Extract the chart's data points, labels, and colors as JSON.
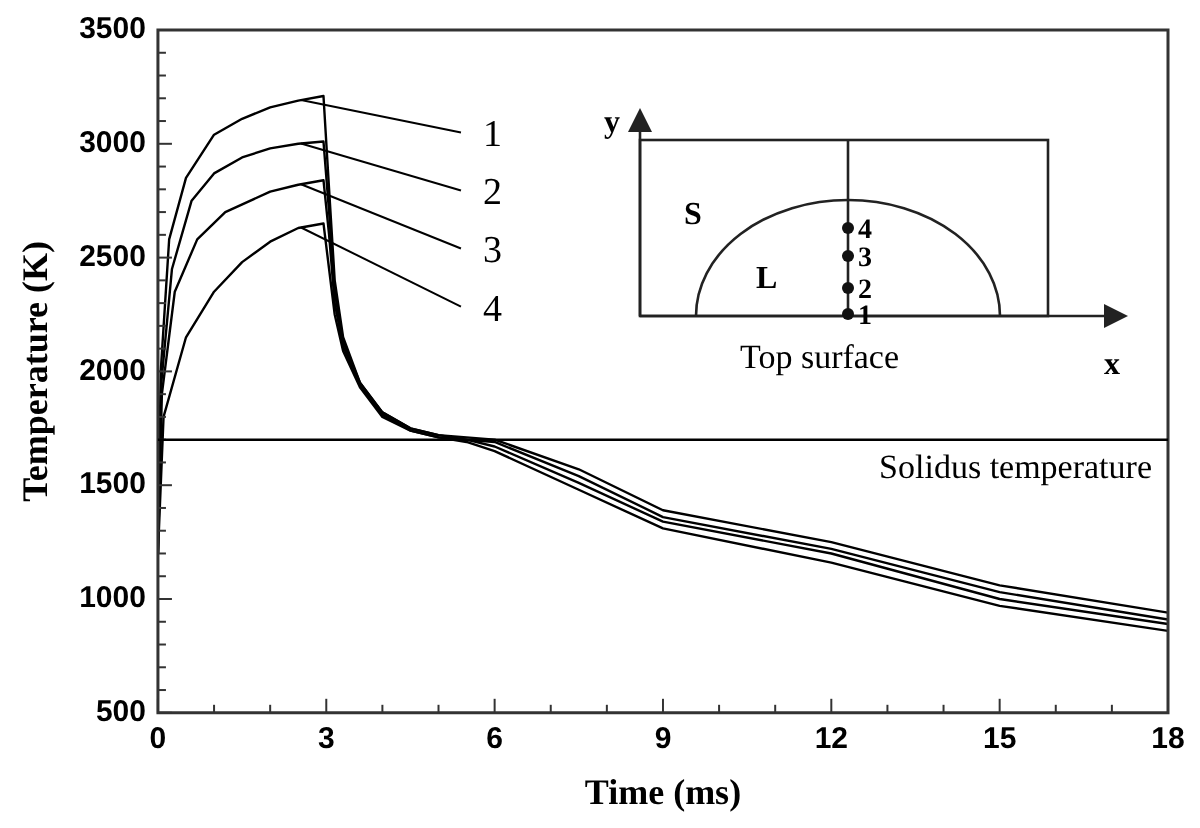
{
  "chart_data": {
    "type": "line",
    "xlabel": "Time (ms)",
    "ylabel": "Temperature (K)",
    "xlim": [
      0,
      18
    ],
    "ylim": [
      500,
      3500
    ],
    "xticks": [
      0,
      {
        "value": 1,
        "label": null
      },
      {
        "value": 2,
        "label": null
      },
      3,
      {
        "value": 4,
        "label": null
      },
      {
        "value": 5,
        "label": null
      },
      6,
      {
        "value": 7,
        "label": null
      },
      {
        "value": 8,
        "label": null
      },
      9,
      {
        "value": 10,
        "label": null
      },
      {
        "value": 11,
        "label": null
      },
      12,
      {
        "value": 13,
        "label": null
      },
      {
        "value": 14,
        "label": null
      },
      15,
      {
        "value": 16,
        "label": null
      },
      {
        "value": 17,
        "label": null
      },
      18
    ],
    "yticks": [
      500,
      {
        "value": 600,
        "label": null
      },
      {
        "value": 700,
        "label": null
      },
      {
        "value": 800,
        "label": null
      },
      {
        "value": 900,
        "label": null
      },
      1000,
      {
        "value": 1100,
        "label": null
      },
      {
        "value": 1200,
        "label": null
      },
      {
        "value": 1300,
        "label": null
      },
      {
        "value": 1400,
        "label": null
      },
      1500,
      {
        "value": 1600,
        "label": null
      },
      {
        "value": 1700,
        "label": null
      },
      {
        "value": 1800,
        "label": null
      },
      {
        "value": 1900,
        "label": null
      },
      2000,
      {
        "value": 2100,
        "label": null
      },
      {
        "value": 2200,
        "label": null
      },
      {
        "value": 2300,
        "label": null
      },
      {
        "value": 2400,
        "label": null
      },
      2500,
      {
        "value": 2600,
        "label": null
      },
      {
        "value": 2700,
        "label": null
      },
      {
        "value": 2800,
        "label": null
      },
      {
        "value": 2900,
        "label": null
      },
      3000,
      {
        "value": 3100,
        "label": null
      },
      {
        "value": 3200,
        "label": null
      },
      {
        "value": 3300,
        "label": null
      },
      {
        "value": 3400,
        "label": null
      },
      3500
    ],
    "grid": false,
    "legend": "top left",
    "marker": "none",
    "line_style": "solid",
    "series": [
      {
        "name": "1",
        "color": "#000000",
        "x": [
          0,
          0.05,
          0.2,
          0.5,
          1,
          1.5,
          2,
          2.5,
          2.95,
          3.05,
          3.15,
          3.3,
          3.6,
          4,
          4.5,
          5,
          5.5,
          6,
          7.5,
          9,
          12,
          15,
          18
        ],
        "values": [
          1200,
          2000,
          2580,
          2850,
          3040,
          3110,
          3160,
          3190,
          3210,
          2800,
          2400,
          2150,
          1950,
          1820,
          1750,
          1720,
          1710,
          1700,
          1570,
          1390,
          1250,
          1060,
          940
        ]
      },
      {
        "name": "2",
        "color": "#000000",
        "x": [
          0,
          0.06,
          0.25,
          0.6,
          1,
          1.5,
          2,
          2.5,
          2.95,
          3.05,
          3.15,
          3.3,
          3.6,
          4,
          4.5,
          5,
          5.5,
          6,
          7.5,
          9,
          12,
          15,
          18
        ],
        "values": [
          1200,
          1950,
          2450,
          2750,
          2870,
          2940,
          2980,
          3000,
          3010,
          2700,
          2350,
          2130,
          1950,
          1820,
          1750,
          1720,
          1700,
          1690,
          1540,
          1360,
          1220,
          1030,
          910
        ]
      },
      {
        "name": "3",
        "color": "#000000",
        "x": [
          0,
          0.07,
          0.3,
          0.7,
          1.2,
          2,
          2.5,
          2.95,
          3.05,
          3.15,
          3.3,
          3.6,
          4,
          4.5,
          5,
          5.5,
          6,
          7.5,
          9,
          12,
          15,
          18
        ],
        "values": [
          1200,
          1900,
          2350,
          2580,
          2700,
          2790,
          2820,
          2840,
          2600,
          2300,
          2110,
          1940,
          1810,
          1740,
          1710,
          1700,
          1670,
          1510,
          1340,
          1200,
          1000,
          890
        ]
      },
      {
        "name": "4",
        "color": "#000000",
        "x": [
          0,
          0.1,
          0.5,
          1,
          1.5,
          2,
          2.5,
          2.95,
          3.05,
          3.15,
          3.3,
          3.6,
          4,
          4.5,
          5,
          5.5,
          6,
          7.5,
          9,
          12,
          15,
          18
        ],
        "values": [
          1200,
          1800,
          2150,
          2350,
          2480,
          2570,
          2630,
          2650,
          2450,
          2250,
          2090,
          1930,
          1800,
          1740,
          1710,
          1690,
          1650,
          1480,
          1310,
          1160,
          970,
          860
        ]
      }
    ],
    "ref_lines": [
      {
        "axis": "y",
        "value": 1700,
        "label": "Solidus temperature",
        "color": "#000000",
        "line_style": "solid"
      }
    ],
    "annotations": [
      "Top surface",
      "S",
      "L",
      "x",
      "y"
    ]
  }
}
